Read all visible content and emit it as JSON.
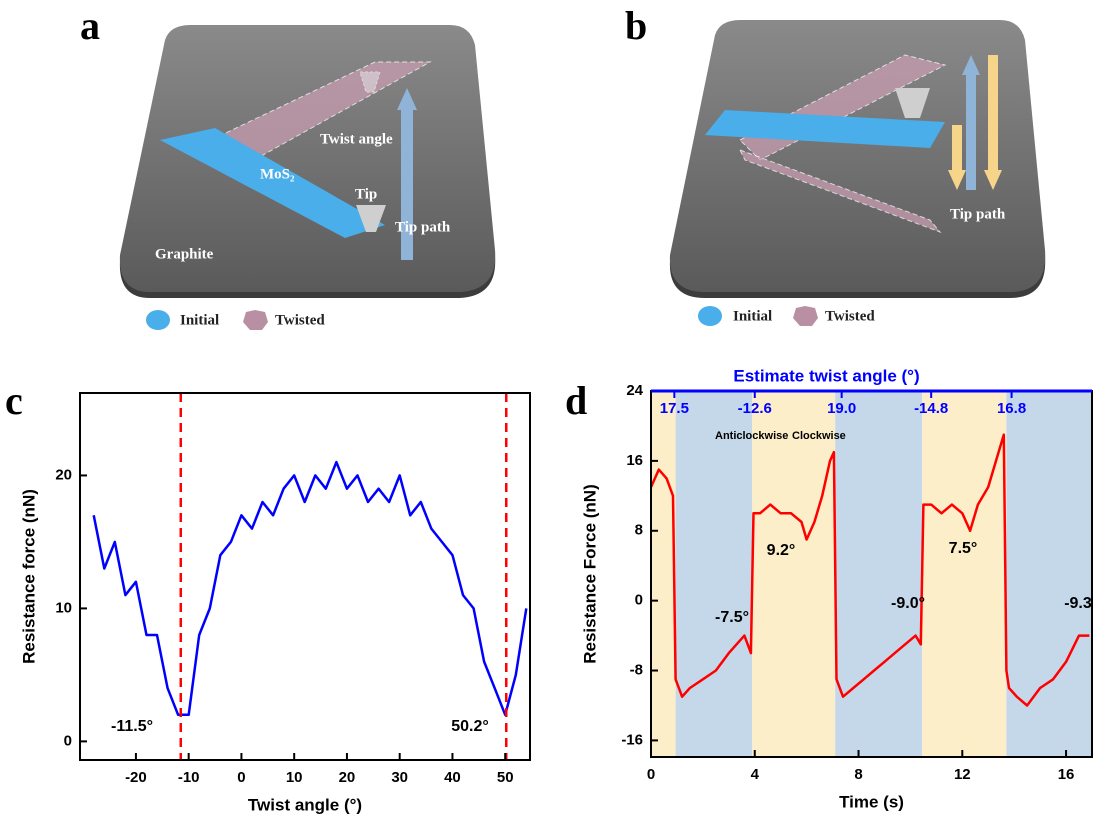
{
  "figure": {
    "panels": [
      {
        "letter": "a",
        "labels": [
          "Twist angle",
          "MoS₂",
          "Tip",
          "Tip path",
          "Graphite"
        ],
        "legend": [
          "Initial",
          "Twisted"
        ]
      },
      {
        "letter": "b",
        "labels": [
          "Tip path"
        ],
        "legend": [
          "Initial",
          "Twisted"
        ]
      },
      {
        "letter": "c"
      },
      {
        "letter": "d"
      }
    ]
  },
  "chart_data": [
    {
      "type": "line",
      "xlabel": "Twist angle (°)",
      "ylabel": "Resistance force (nN)",
      "color": "#0000ff",
      "x": [
        -28,
        -26,
        -24,
        -22,
        -20,
        -18,
        -16,
        -14,
        -12,
        -10,
        -8,
        -6,
        -4,
        -2,
        0,
        2,
        4,
        6,
        8,
        10,
        12,
        14,
        16,
        18,
        20,
        22,
        24,
        26,
        28,
        30,
        32,
        34,
        36,
        38,
        40,
        42,
        44,
        46,
        48,
        50,
        52,
        54
      ],
      "values": [
        17,
        13,
        15,
        11,
        12,
        8,
        8,
        4,
        2,
        2,
        8,
        10,
        14,
        15,
        17,
        16,
        18,
        17,
        19,
        20,
        18,
        20,
        19,
        21,
        19,
        20,
        18,
        19,
        18,
        20,
        17,
        18,
        16,
        15,
        14,
        11,
        10,
        6,
        4,
        2,
        5,
        10
      ],
      "xlim": [
        -30.6,
        54.7
      ],
      "xticks": [
        -20,
        -10,
        0,
        10,
        20,
        30,
        40,
        50
      ],
      "ylim": [
        -1.4,
        26.2
      ],
      "yticks": [
        0,
        10,
        20
      ],
      "vlines": [
        -11.5,
        50.2
      ],
      "vline_color": "#ff0000",
      "annotations": [
        "-11.5°",
        "50.2°"
      ]
    },
    {
      "type": "line",
      "xlabel": "Time (s)",
      "ylabel": "Resistance Force (nN)",
      "color": "#ff0000",
      "x": [
        0,
        0.3,
        0.6,
        0.85,
        0.95,
        1.2,
        1.5,
        2,
        2.5,
        3,
        3.3,
        3.6,
        3.85,
        3.95,
        4.2,
        4.6,
        5,
        5.4,
        5.8,
        6,
        6.3,
        6.6,
        6.9,
        7.05,
        7.15,
        7.4,
        7.8,
        8.2,
        8.6,
        9,
        9.4,
        9.8,
        10.2,
        10.4,
        10.5,
        10.8,
        11.2,
        11.6,
        12,
        12.3,
        12.6,
        13,
        13.4,
        13.6,
        13.7,
        13.8,
        14.1,
        14.5,
        15,
        15.5,
        16,
        16.5,
        16.9
      ],
      "values": [
        13,
        15,
        14,
        12,
        -9,
        -11,
        -10,
        -9,
        -8,
        -6,
        -5,
        -4,
        -6,
        10,
        10,
        11,
        10,
        10,
        9,
        7,
        9,
        12,
        16,
        17,
        -9,
        -11,
        -10,
        -9,
        -8,
        -7,
        -6,
        -5,
        -4,
        -5,
        11,
        11,
        10,
        11,
        10,
        8,
        11,
        13,
        17,
        19,
        -8,
        -10,
        -11,
        -12,
        -10,
        -9,
        -7,
        -4,
        -4
      ],
      "xlim": [
        0,
        17
      ],
      "xticks": [
        0,
        4,
        8,
        12,
        16
      ],
      "ylim": [
        -17.9,
        24
      ],
      "yticks": [
        -16,
        -8,
        0,
        8,
        16,
        24
      ],
      "regions": [
        {
          "start": 0,
          "end": 0.95,
          "color": "#fbeec9"
        },
        {
          "start": 0.95,
          "end": 3.9,
          "color": "#c5d8ea"
        },
        {
          "start": 3.9,
          "end": 7.1,
          "color": "#fbeec9"
        },
        {
          "start": 7.1,
          "end": 10.45,
          "color": "#c5d8ea"
        },
        {
          "start": 10.45,
          "end": 13.7,
          "color": "#fbeec9"
        },
        {
          "start": 13.7,
          "end": 17,
          "color": "#c5d8ea"
        }
      ],
      "top_axis": {
        "label": "Estimate twist angle (°)",
        "color": "#0000ff",
        "ticks": [
          {
            "value": 0.9,
            "label": "17.5"
          },
          {
            "value": 4.0,
            "label": "-12.6"
          },
          {
            "value": 7.35,
            "label": "19.0"
          },
          {
            "value": 10.8,
            "label": "-14.8"
          },
          {
            "value": 13.9,
            "label": "16.8"
          }
        ]
      },
      "annotations": [
        "Anticlockwise",
        "Clockwise",
        "-7.5°",
        "9.2°",
        "-9.0°",
        "7.5°",
        "-9.3"
      ]
    }
  ]
}
